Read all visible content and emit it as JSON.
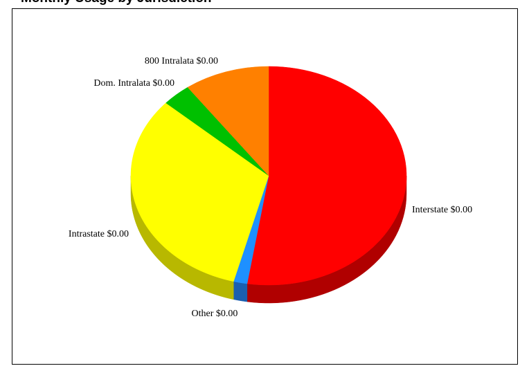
{
  "header": {
    "title": "Monthly Usage by Jurisdiction"
  },
  "chart_data": {
    "type": "pie",
    "style": "3d",
    "title": "Monthly Usage by Jurisdiction",
    "slices": [
      {
        "label": "Interstate $0.00",
        "value": 52.5,
        "color": "#ff0000",
        "side_color": "#b00000"
      },
      {
        "label": "Other $0.00",
        "value": 1.6,
        "color": "#1e90ff",
        "side_color": "#1a5fb0"
      },
      {
        "label": "Intrastate $0.00",
        "value": 32.5,
        "color": "#ffff00",
        "side_color": "#b8b800"
      },
      {
        "label": "Dom. Intralata $0.00",
        "value": 3.4,
        "color": "#00c000",
        "side_color": "#008a00"
      },
      {
        "label": "800 Intralata $0.00",
        "value": 10.0,
        "color": "#ff8000",
        "side_color": "#b35a00"
      }
    ],
    "legend": "none"
  }
}
